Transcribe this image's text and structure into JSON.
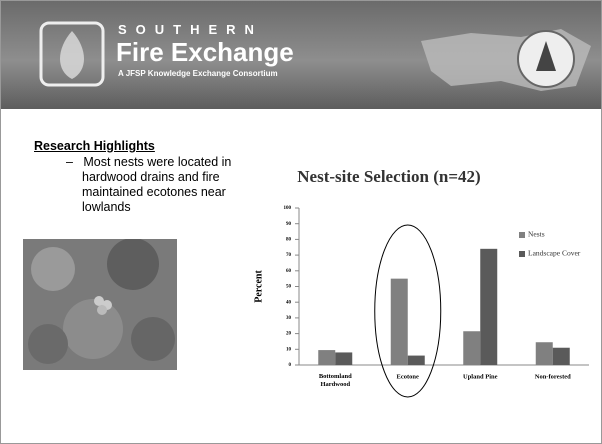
{
  "header": {
    "brand_top": "SOUTHERN",
    "brand_name": "Fire Exchange",
    "tagline": "A JFSP Knowledge Exchange Consortium"
  },
  "highlights": {
    "title": "Research Highlights",
    "items": [
      "Most nests were located in hardwood drains and fire maintained ecotones near lowlands"
    ]
  },
  "chart_data": {
    "type": "bar",
    "title": "Nest-site Selection (n=42)",
    "y_label": "Percent",
    "categories": [
      "Bottomland Hardwood",
      "Ecotone",
      "Upland Pine",
      "Non-forested"
    ],
    "series": [
      {
        "name": "Nests",
        "color": "#808080",
        "values": [
          9.5,
          55,
          21.5,
          14.5
        ]
      },
      {
        "name": "Landscape Cover",
        "color": "#5a5a5a",
        "values": [
          8,
          6,
          74,
          11
        ]
      }
    ],
    "ylim": [
      0,
      100
    ],
    "yticks": [
      0,
      10,
      20,
      30,
      40,
      50,
      60,
      70,
      80,
      90,
      100
    ],
    "legend": "right"
  }
}
